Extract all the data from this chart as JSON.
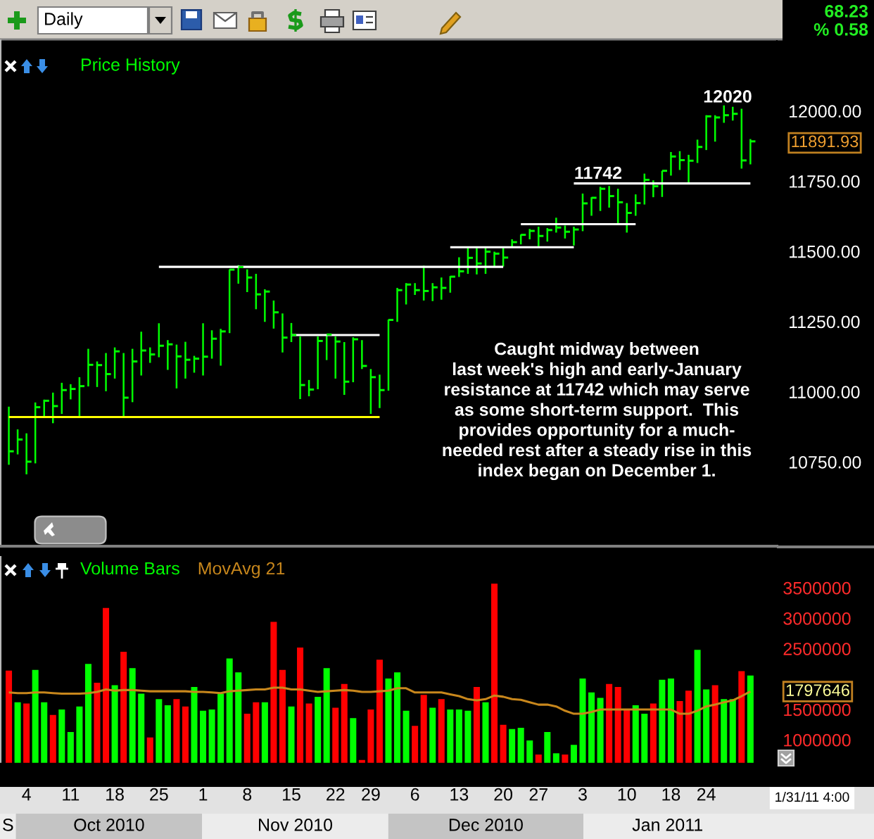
{
  "chart_data": [
    {
      "type": "bar",
      "title": "Price History",
      "categories": [
        null,
        null,
        "4",
        null,
        null,
        null,
        null,
        "11",
        null,
        null,
        null,
        null,
        "18",
        null,
        null,
        null,
        null,
        "25",
        null,
        null,
        null,
        null,
        "1",
        null,
        null,
        null,
        null,
        "8",
        null,
        null,
        null,
        null,
        "15",
        null,
        null,
        null,
        null,
        "22",
        null,
        null,
        null,
        "29",
        null,
        null,
        null,
        null,
        "6",
        null,
        null,
        null,
        null,
        "13",
        null,
        null,
        null,
        null,
        "20",
        null,
        null,
        null,
        "27",
        null,
        null,
        null,
        null,
        "3",
        null,
        null,
        null,
        null,
        "10",
        null,
        null,
        null,
        null,
        "18",
        null,
        null,
        null,
        "24",
        null,
        null,
        null,
        null,
        null
      ],
      "series": [
        {
          "color": "#00ff00",
          "base": [
            10740,
            10777,
            10706,
            10745,
            10910,
            10888,
            10921,
            10973,
            10910,
            11019,
            11017,
            11002,
            11047,
            10910,
            10963,
            11058,
            11103,
            11123,
            11078,
            11012,
            11047,
            11068,
            11058,
            11118,
            11093,
            11209,
            11385,
            11355,
            11294,
            11249,
            11225,
            11140,
            11177,
            10974,
            10984,
            11009,
            11113,
            11047,
            10989,
            11034,
            11081,
            10921,
            10942,
            11004,
            11249,
            11311,
            11345,
            11325,
            11323,
            11328,
            11353,
            11409,
            11420,
            11418,
            11420,
            11446,
            11446,
            11513,
            11525,
            11543,
            11516,
            11535,
            11567,
            11546,
            11521,
            11572,
            11627,
            11644,
            11656,
            11595,
            11567,
            11627,
            11667,
            11693,
            11694,
            11770,
            11790,
            11740,
            11815,
            11861,
            11891,
            11958,
            11966,
            11795,
            11810
          ],
          "values": [
            207,
            89,
            146,
            217,
            62,
            109,
            111,
            54,
            142,
            134,
            91,
            136,
            111,
            228,
            190,
            156,
            55,
            121,
            106,
            156,
            131,
            60,
            186,
            101,
            131,
            227,
            66,
            81,
            126,
            116,
            100,
            139,
            68,
            223,
            58,
            188,
            92,
            150,
            188,
            160,
            103,
            160,
            119,
            253,
            121,
            76,
            42,
            124,
            64,
            79,
            59,
            70,
            93,
            94,
            93,
            53,
            67,
            30,
            35,
            37,
            72,
            48,
            53,
            46,
            67,
            134,
            66,
            86,
            77,
            128,
            105,
            76,
            110,
            60,
            93,
            84,
            67,
            104,
            83,
            124,
            94,
            62,
            49,
            213,
            90
          ]
        },
        {
          "type": "scatter",
          "color": "#00ff00",
          "values": [
            10788,
            10830,
            10751,
            10945,
            10968,
            10949,
            11006,
            11010,
            11020,
            11096,
            11095,
            11063,
            11144,
            10979,
            11108,
            11147,
            11133,
            11164,
            11169,
            11126,
            11114,
            11118,
            11125,
            11189,
            11215,
            11435,
            11444,
            11407,
            11347,
            11357,
            11283,
            11193,
            11202,
            11024,
            11008,
            11181,
            11204,
            11179,
            11036,
            11187,
            11092,
            11052,
            11006,
            11256,
            11362,
            11382,
            11362,
            11359,
            11372,
            11370,
            11410,
            11429,
            11477,
            11457,
            11499,
            11492,
            11478,
            11533,
            11559,
            11573,
            11555,
            11576,
            11585,
            11570,
            11578,
            11671,
            11691,
            11723,
            11697,
            11675,
            11637,
            11672,
            11755,
            11732,
            11787,
            11838,
            11825,
            11823,
            11872,
            11981,
            11977,
            11985,
            11990,
            11824,
            11891.93
          ]
        },
        {
          "type": "line",
          "color": "#ffff00",
          "values": [
            10910,
            10910,
            10910,
            10910,
            10910,
            10910,
            10910,
            10910,
            10910,
            10910,
            10910,
            10910,
            10910,
            10910,
            10910,
            10910,
            10910,
            10910,
            10910,
            10910,
            10910,
            10910,
            10910,
            10910,
            10910,
            10910,
            10910,
            10910,
            10910,
            10910,
            10910,
            10910,
            10910,
            10910,
            10910,
            10910,
            10910,
            10910,
            10910,
            10910,
            10910,
            10910,
            10910,
            null,
            null,
            null,
            null,
            null,
            null,
            null,
            null,
            null,
            null,
            null,
            null,
            null,
            null,
            null,
            null,
            null,
            null,
            null,
            null,
            null,
            null,
            null,
            null,
            null,
            null,
            null,
            null,
            null,
            null,
            null,
            null,
            null,
            null,
            null,
            null,
            null,
            null,
            null,
            null,
            null,
            null
          ]
        },
        {
          "type": "line",
          "color": "#ffffff",
          "values": [
            null,
            null,
            null,
            null,
            null,
            null,
            null,
            null,
            null,
            null,
            null,
            null,
            null,
            null,
            null,
            null,
            null,
            11445,
            11445,
            11445,
            11445,
            11445,
            11445,
            11445,
            11445,
            11445,
            11445,
            11445,
            11445,
            11445,
            11445,
            11445,
            11445,
            11445,
            11445,
            11445,
            11445,
            11445,
            11445,
            11445,
            11445,
            11445,
            11445,
            11445,
            11445,
            11445,
            11445,
            11445,
            11445,
            11445,
            11445,
            11445,
            11445,
            11445,
            11445,
            11445,
            11445,
            null,
            null,
            null,
            null,
            null,
            null,
            null,
            null,
            null,
            null,
            null,
            null,
            null,
            null,
            null,
            null,
            null,
            null,
            null,
            null,
            null,
            null,
            null,
            null,
            null,
            null,
            null,
            null
          ]
        },
        {
          "type": "line",
          "color": "#ffffff",
          "values": [
            null,
            null,
            null,
            null,
            null,
            null,
            null,
            null,
            null,
            null,
            null,
            null,
            null,
            null,
            null,
            null,
            null,
            null,
            null,
            null,
            null,
            null,
            null,
            null,
            null,
            null,
            null,
            null,
            null,
            null,
            null,
            null,
            11202,
            11202,
            11202,
            11202,
            11202,
            11202,
            11202,
            11202,
            11202,
            11202,
            11202,
            null,
            null,
            null,
            null,
            null,
            null,
            null,
            null,
            null,
            null,
            null,
            null,
            null,
            null,
            null,
            null,
            null,
            null,
            null,
            null,
            null,
            null,
            null,
            null,
            null,
            null,
            null,
            null,
            null,
            null,
            null,
            null,
            null,
            null,
            null,
            null,
            null,
            null,
            null,
            null,
            null,
            null
          ]
        },
        {
          "type": "line",
          "color": "#ffffff",
          "values": [
            null,
            null,
            null,
            null,
            null,
            null,
            null,
            null,
            null,
            null,
            null,
            null,
            null,
            null,
            null,
            null,
            null,
            null,
            null,
            null,
            null,
            null,
            null,
            null,
            null,
            null,
            null,
            null,
            null,
            null,
            null,
            null,
            null,
            null,
            null,
            null,
            null,
            null,
            null,
            null,
            null,
            null,
            null,
            null,
            null,
            null,
            null,
            null,
            null,
            null,
            11515,
            11515,
            11515,
            11515,
            11515,
            11515,
            11515,
            11515,
            11515,
            11515,
            11515,
            11515,
            11515,
            11515,
            11515,
            null,
            null,
            null,
            null,
            null,
            null,
            null,
            null,
            null,
            null,
            null,
            null,
            null,
            null,
            null,
            null,
            null,
            null,
            null,
            null
          ]
        },
        {
          "type": "line",
          "color": "#ffffff",
          "values": [
            null,
            null,
            null,
            null,
            null,
            null,
            null,
            null,
            null,
            null,
            null,
            null,
            null,
            null,
            null,
            null,
            null,
            null,
            null,
            null,
            null,
            null,
            null,
            null,
            null,
            null,
            null,
            null,
            null,
            null,
            null,
            null,
            null,
            null,
            null,
            null,
            null,
            null,
            null,
            null,
            null,
            null,
            null,
            null,
            null,
            null,
            null,
            null,
            null,
            null,
            null,
            null,
            null,
            null,
            null,
            null,
            null,
            null,
            11597,
            11597,
            11597,
            11597,
            11597,
            11597,
            11597,
            11597,
            11597,
            11597,
            11597,
            11597,
            11597,
            11597,
            null,
            null,
            null,
            null,
            null,
            null,
            null,
            null,
            null,
            null,
            null,
            null,
            null
          ]
        },
        {
          "type": "line",
          "color": "#ffffff",
          "values": [
            null,
            null,
            null,
            null,
            null,
            null,
            null,
            null,
            null,
            null,
            null,
            null,
            null,
            null,
            null,
            null,
            null,
            null,
            null,
            null,
            null,
            null,
            null,
            null,
            null,
            null,
            null,
            null,
            null,
            null,
            null,
            null,
            null,
            null,
            null,
            null,
            null,
            null,
            null,
            null,
            null,
            null,
            null,
            null,
            null,
            null,
            null,
            null,
            null,
            null,
            null,
            null,
            null,
            null,
            null,
            null,
            null,
            null,
            null,
            null,
            null,
            null,
            null,
            null,
            11742,
            11742,
            11742,
            11742,
            11742,
            11742,
            11742,
            11742,
            11742,
            11742,
            11742,
            11742,
            11742,
            11742,
            11742,
            11742,
            11742,
            11742,
            11742,
            11742,
            11742
          ]
        }
      ],
      "ylim": [
        10450,
        12250
      ],
      "yticks": [
        {
          "value": 10750,
          "label": "10750.00"
        },
        {
          "value": 11000,
          "label": "11000.00"
        },
        {
          "value": 11250,
          "label": "11250.00"
        },
        {
          "value": 11500,
          "label": "11500.00"
        },
        {
          "value": 11750,
          "label": "11750.00"
        },
        {
          "value": 12000,
          "label": "12000.00"
        }
      ],
      "tick_labels": "y",
      "annotations": [
        "Caught midway between\nlast week's high and early-January\nresistance at 11742 which may serve\nas some short-term support.  This\nprovides opportunity for a much-\nneeded rest after a steady rise in this\nindex began on December 1.",
        "68.23",
        "% 0.58",
        "Daily",
        "12020",
        {
          "text": "11742",
          "y": 11742
        },
        "11891.93"
      ]
    },
    {
      "type": "bar",
      "categories": [
        null,
        null,
        "4",
        null,
        null,
        null,
        null,
        "11",
        null,
        null,
        null,
        null,
        "18",
        null,
        null,
        null,
        null,
        "25",
        null,
        null,
        null,
        null,
        "1",
        null,
        null,
        null,
        null,
        "8",
        null,
        null,
        null,
        null,
        "15",
        null,
        null,
        null,
        null,
        "22",
        null,
        null,
        null,
        "29",
        null,
        null,
        null,
        null,
        "6",
        null,
        null,
        null,
        null,
        "13",
        null,
        null,
        null,
        null,
        "20",
        null,
        null,
        null,
        "27",
        null,
        null,
        null,
        null,
        "3",
        null,
        null,
        null,
        null,
        "10",
        null,
        null,
        null,
        null,
        "18",
        null,
        null,
        null,
        "24",
        null,
        null,
        null,
        null,
        null
      ],
      "series": [
        {
          "name": "Volume Bars",
          "color": "#00ff00",
          "colors": [
            "#ff0000",
            "#00ff00",
            "#ff0000",
            "#00ff00",
            "#00ff00",
            "#ff0000",
            "#00ff00",
            "#00ff00",
            "#00ff00",
            "#00ff00",
            "#ff0000",
            "#ff0000",
            "#00ff00",
            "#ff0000",
            "#00ff00",
            "#00ff00",
            "#ff0000",
            "#00ff00",
            "#00ff00",
            "#ff0000",
            "#ff0000",
            "#00ff00",
            "#00ff00",
            "#00ff00",
            "#00ff00",
            "#00ff00",
            "#00ff00",
            "#ff0000",
            "#ff0000",
            "#00ff00",
            "#ff0000",
            "#ff0000",
            "#00ff00",
            "#ff0000",
            "#ff0000",
            "#00ff00",
            "#00ff00",
            "#ff0000",
            "#ff0000",
            "#00ff00",
            "#ff0000",
            "#ff0000",
            "#ff0000",
            "#00ff00",
            "#00ff00",
            "#00ff00",
            "#ff0000",
            "#ff0000",
            "#00ff00",
            "#ff0000",
            "#00ff00",
            "#00ff00",
            "#00ff00",
            "#ff0000",
            "#00ff00",
            "#ff0000",
            "#ff0000",
            "#00ff00",
            "#00ff00",
            "#00ff00",
            "#ff0000",
            "#00ff00",
            "#00ff00",
            "#ff0000",
            "#00ff00",
            "#00ff00",
            "#00ff00",
            "#00ff00",
            "#ff0000",
            "#ff0000",
            "#ff0000",
            "#00ff00",
            "#00ff00",
            "#ff0000",
            "#00ff00",
            "#00ff00",
            "#ff0000",
            "#ff0000",
            "#00ff00",
            "#00ff00",
            "#ff0000",
            "#00ff00",
            "#00ff00",
            "#ff0000",
            "#00ff00"
          ],
          "values": [
            2140000,
            1620000,
            1600000,
            2150000,
            1620000,
            1410000,
            1500000,
            1130000,
            1550000,
            2250000,
            1940000,
            3170000,
            1900000,
            2450000,
            2180000,
            1760000,
            1040000,
            1670000,
            1570000,
            1670000,
            1550000,
            1870000,
            1480000,
            1500000,
            1760000,
            2340000,
            2110000,
            1430000,
            1620000,
            1620000,
            2940000,
            2150000,
            1550000,
            2520000,
            1600000,
            1710000,
            2180000,
            1530000,
            1920000,
            1360000,
            670000,
            1500000,
            2320000,
            2010000,
            2110000,
            1480000,
            1230000,
            1740000,
            1530000,
            1670000,
            1500000,
            1500000,
            1480000,
            1870000,
            1620000,
            3570000,
            1250000,
            1180000,
            1200000,
            990000,
            760000,
            1130000,
            780000,
            760000,
            920000,
            2010000,
            1780000,
            1690000,
            1920000,
            1870000,
            1500000,
            1570000,
            1430000,
            1600000,
            1990000,
            2010000,
            1640000,
            1810000,
            2480000,
            1830000,
            1900000,
            1670000,
            1670000,
            2130000,
            2060000
          ]
        },
        {
          "name": "MovAvg 21",
          "type": "line",
          "color": "#c8871c",
          "values": [
            1780000,
            1770000,
            1770000,
            1780000,
            1780000,
            1770000,
            1760000,
            1760000,
            1760000,
            1770000,
            1790000,
            1830000,
            1810000,
            1820000,
            1820000,
            1810000,
            1800000,
            1800000,
            1800000,
            1800000,
            1800000,
            1790000,
            1790000,
            1780000,
            1770000,
            1800000,
            1810000,
            1820000,
            1830000,
            1830000,
            1860000,
            1860000,
            1830000,
            1830000,
            1810000,
            1790000,
            1800000,
            1810000,
            1820000,
            1810000,
            1790000,
            1790000,
            1800000,
            1810000,
            1850000,
            1850000,
            1780000,
            1780000,
            1780000,
            1780000,
            1750000,
            1720000,
            1670000,
            1650000,
            1670000,
            1730000,
            1710000,
            1670000,
            1660000,
            1620000,
            1580000,
            1580000,
            1550000,
            1480000,
            1430000,
            1430000,
            1460000,
            1500000,
            1500000,
            1500000,
            1500000,
            1500000,
            1500000,
            1500000,
            1500000,
            1500000,
            1430000,
            1430000,
            1480000,
            1550000,
            1580000,
            1620000,
            1650000,
            1720000,
            1797646
          ]
        }
      ],
      "ylim": [
        600000,
        4000000
      ],
      "yticks": [
        1000000,
        1500000,
        2500000,
        3000000,
        3500000
      ],
      "legend": "top left",
      "annotations": [
        "S",
        "Oct 2010",
        "Nov 2010",
        "Dec 2010",
        "Jan 2011",
        "1/31/11 4:00",
        "1797646"
      ]
    }
  ]
}
